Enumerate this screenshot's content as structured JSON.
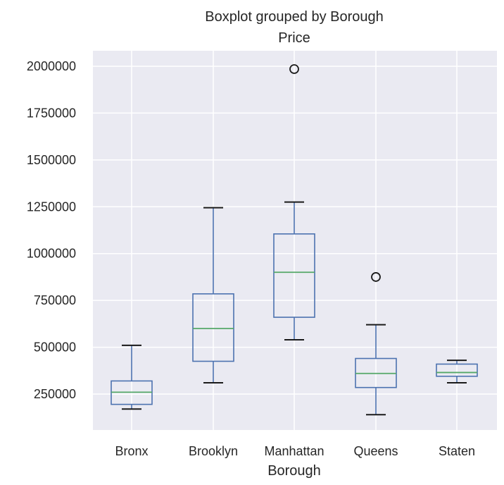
{
  "chart_data": {
    "type": "boxplot",
    "title": "Boxplot grouped by Borough",
    "subtitle": "Price",
    "xlabel": "Borough",
    "ylabel": "",
    "ylim": [
      50000,
      2080000
    ],
    "yticks": [
      250000,
      500000,
      750000,
      1000000,
      1250000,
      1500000,
      1750000,
      2000000
    ],
    "ytick_labels": [
      "250000",
      "500000",
      "750000",
      "1000000",
      "1250000",
      "1500000",
      "1750000",
      "2000000"
    ],
    "grid": true,
    "categories": [
      "Bronx",
      "Brooklyn",
      "Manhattan",
      "Queens",
      "Staten"
    ],
    "boxes": [
      {
        "label": "Bronx",
        "whisker_low": 170000,
        "q1": 195000,
        "median": 260000,
        "q3": 320000,
        "whisker_high": 510000,
        "outliers": []
      },
      {
        "label": "Brooklyn",
        "whisker_low": 310000,
        "q1": 425000,
        "median": 600000,
        "q3": 785000,
        "whisker_high": 1245000,
        "outliers": []
      },
      {
        "label": "Manhattan",
        "whisker_low": 540000,
        "q1": 660000,
        "median": 900000,
        "q3": 1105000,
        "whisker_high": 1275000,
        "outliers": [
          1985000
        ]
      },
      {
        "label": "Queens",
        "whisker_low": 140000,
        "q1": 285000,
        "median": 360000,
        "q3": 440000,
        "whisker_high": 620000,
        "outliers": [
          875000
        ]
      },
      {
        "label": "Staten",
        "whisker_low": 310000,
        "q1": 345000,
        "median": 365000,
        "q3": 410000,
        "whisker_high": 430000,
        "outliers": []
      }
    ]
  },
  "colors": {
    "background": "#eaeaf2",
    "grid": "#ffffff",
    "box": "#4c72b0",
    "median": "#55a868",
    "text": "#262626"
  }
}
